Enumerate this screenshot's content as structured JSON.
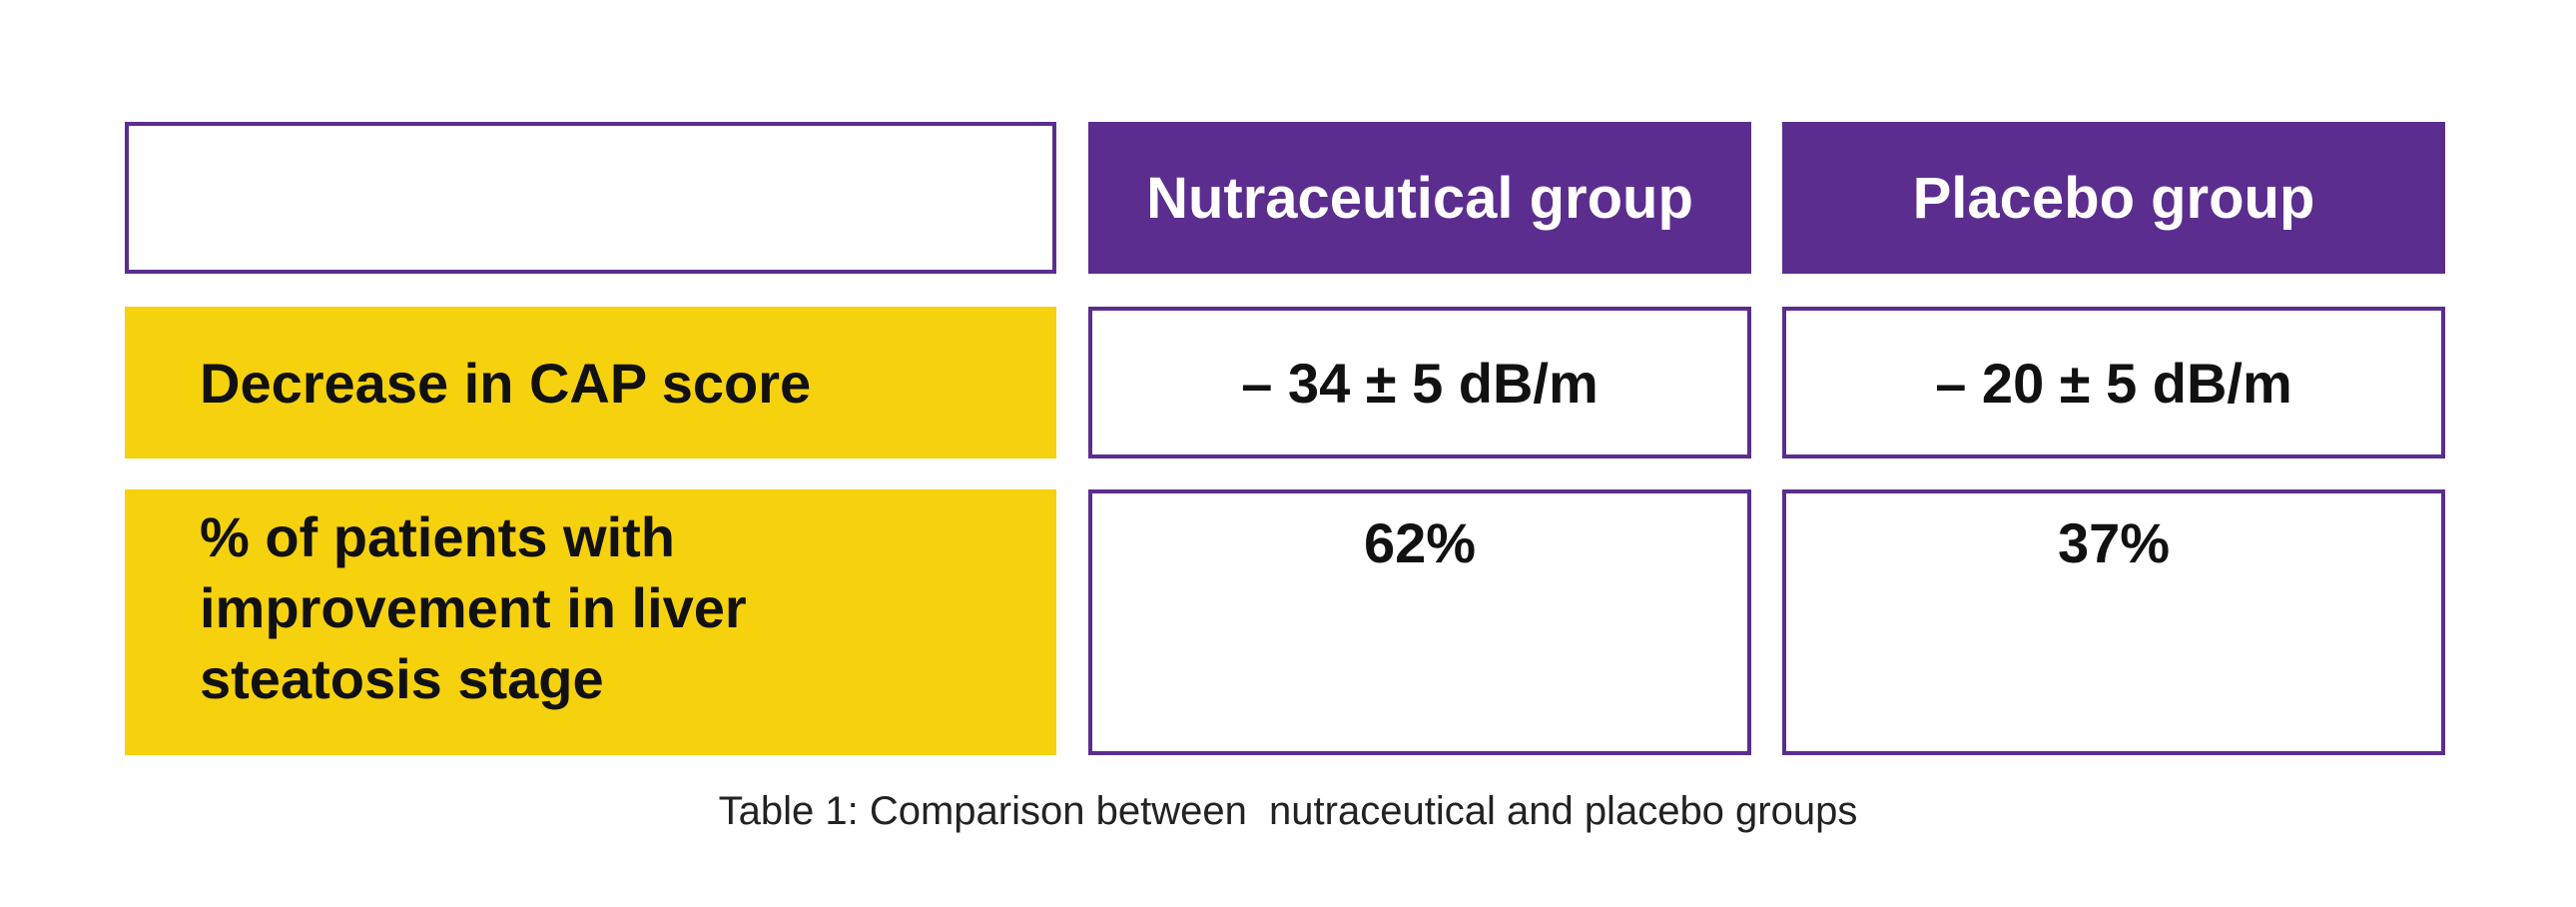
{
  "table": {
    "header": {
      "corner": "",
      "col1": "Nutraceutical group",
      "col2": "Placebo group"
    },
    "rows": [
      {
        "label": "Decrease in CAP score",
        "col1": "– 34 ± 5 dB/m",
        "col2": "– 20 ± 5 dB/m"
      },
      {
        "label_lines": [
          "% of patients with",
          "improvement in liver",
          "steatosis stage"
        ],
        "col1": "62%",
        "col2": "37%"
      }
    ]
  },
  "caption": "Table 1: Comparison between  nutraceutical and placebo groups",
  "colors": {
    "purple": "#5b2d8e",
    "yellow": "#f6d10e"
  }
}
